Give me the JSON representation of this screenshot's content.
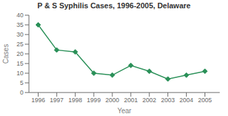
{
  "chart_data": {
    "type": "line",
    "title": "P & S Syphilis Cases, 1996-2005, Delaware",
    "xlabel": "Year",
    "ylabel": "Cases",
    "x": [
      1996,
      1997,
      1998,
      1999,
      2000,
      2001,
      2002,
      2003,
      2004,
      2005
    ],
    "values": [
      35,
      22,
      21,
      10,
      9,
      14,
      11,
      7,
      9,
      11
    ],
    "xlim": [
      1995.5,
      2005.8
    ],
    "xticks": [
      1996,
      1997,
      1998,
      1999,
      2000,
      2001,
      2002,
      2003,
      2004,
      2005
    ],
    "ylim": [
      0,
      40
    ],
    "yticks": [
      0,
      5,
      10,
      15,
      20,
      25,
      30,
      35,
      40
    ],
    "color": "#2a9058",
    "marker": "diamond",
    "grid": false
  }
}
